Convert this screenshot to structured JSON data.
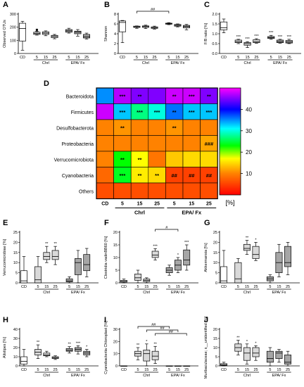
{
  "chart_data": [
    {
      "panel": "A",
      "type": "box",
      "ylabel": "Observed OTUs",
      "ylim": [
        0,
        300
      ],
      "yticks": [
        0,
        100,
        200,
        300
      ],
      "categories": [
        "CD",
        "5",
        "15",
        "25",
        "5",
        "15",
        "25"
      ],
      "groups": [
        {
          "label": "Chrl",
          "start": 1,
          "end": 3
        },
        {
          "label": "EPA/ Fx",
          "start": 4,
          "end": 6
        }
      ],
      "boxes": [
        {
          "min": 25,
          "q1": 95,
          "med": 190,
          "q3": 230,
          "max": 245,
          "color": "#ffffff"
        },
        {
          "min": 140,
          "q1": 145,
          "med": 152,
          "q3": 162,
          "max": 168,
          "color": "#d9d9d9",
          "outliers": [
            180
          ]
        },
        {
          "min": 135,
          "q1": 145,
          "med": 155,
          "q3": 165,
          "max": 172,
          "color": "#d9d9d9"
        },
        {
          "min": 112,
          "q1": 120,
          "med": 130,
          "q3": 138,
          "max": 145,
          "color": "#d9d9d9"
        },
        {
          "min": 155,
          "q1": 162,
          "med": 172,
          "q3": 182,
          "max": 192,
          "color": "#a6a6a6"
        },
        {
          "min": 132,
          "q1": 150,
          "med": 162,
          "q3": 170,
          "max": 182,
          "color": "#a6a6a6"
        },
        {
          "min": 110,
          "q1": 118,
          "med": 128,
          "q3": 145,
          "max": 155,
          "color": "#a6a6a6"
        }
      ]
    },
    {
      "panel": "B",
      "type": "box",
      "ylabel": "Shannon",
      "ylim": [
        0,
        8
      ],
      "yticks": [
        0,
        2,
        4,
        6,
        8
      ],
      "categories": [
        "CD",
        "5",
        "15",
        "25",
        "5",
        "15",
        "25"
      ],
      "groups": [
        {
          "label": "Chrl",
          "start": 1,
          "end": 3
        },
        {
          "label": "EPA/ Fx",
          "start": 4,
          "end": 6
        }
      ],
      "brackets": [
        {
          "from": 1,
          "to": 4,
          "label": "##"
        }
      ],
      "boxes": [
        {
          "min": 2.2,
          "q1": 4.4,
          "med": 6.3,
          "q3": 6.6,
          "max": 6.7,
          "color": "#ffffff"
        },
        {
          "min": 5.1,
          "q1": 5.3,
          "med": 5.4,
          "q3": 5.55,
          "max": 5.6,
          "color": "#d9d9d9"
        },
        {
          "min": 5.05,
          "q1": 5.3,
          "med": 5.45,
          "q3": 5.6,
          "max": 5.75,
          "color": "#d9d9d9"
        },
        {
          "min": 4.95,
          "q1": 5.1,
          "med": 5.25,
          "q3": 5.4,
          "max": 5.55,
          "color": "#d9d9d9"
        },
        {
          "min": 5.85,
          "q1": 5.95,
          "med": 6.05,
          "q3": 6.15,
          "max": 6.25,
          "color": "#a6a6a6"
        },
        {
          "min": 5.4,
          "q1": 5.55,
          "med": 5.7,
          "q3": 5.9,
          "max": 6.0,
          "color": "#a6a6a6"
        },
        {
          "min": 4.8,
          "q1": 5.2,
          "med": 5.5,
          "q3": 5.7,
          "max": 5.9,
          "color": "#a6a6a6"
        }
      ]
    },
    {
      "panel": "C",
      "type": "box",
      "ylabel": "F/B ratio [%]",
      "ylim": [
        0.0,
        2.0
      ],
      "yticks": [
        0.0,
        0.5,
        1.0,
        1.5,
        2.0
      ],
      "ytick_decimals": 1,
      "categories": [
        "CD",
        "5",
        "15",
        "25",
        "5",
        "15",
        "25"
      ],
      "groups": [
        {
          "label": "Chrl",
          "start": 1,
          "end": 3
        },
        {
          "label": "EPA/ Fx",
          "start": 4,
          "end": 6
        }
      ],
      "boxes": [
        {
          "min": 1.05,
          "q1": 1.2,
          "med": 1.3,
          "q3": 1.6,
          "max": 1.75,
          "color": "#ffffff",
          "sig": ""
        },
        {
          "min": 0.5,
          "q1": 0.55,
          "med": 0.6,
          "q3": 0.68,
          "max": 0.72,
          "color": "#d9d9d9",
          "sig": "***"
        },
        {
          "min": 0.3,
          "q1": 0.42,
          "med": 0.5,
          "q3": 0.56,
          "max": 0.6,
          "color": "#d9d9d9",
          "sig": "***"
        },
        {
          "min": 0.52,
          "q1": 0.55,
          "med": 0.6,
          "q3": 0.7,
          "max": 0.75,
          "color": "#d9d9d9",
          "sig": "***"
        },
        {
          "min": 0.72,
          "q1": 0.76,
          "med": 0.8,
          "q3": 0.86,
          "max": 0.92,
          "color": "#a6a6a6",
          "sig": "***"
        },
        {
          "min": 0.52,
          "q1": 0.55,
          "med": 0.6,
          "q3": 0.68,
          "max": 0.72,
          "color": "#a6a6a6",
          "sig": "***"
        },
        {
          "min": 0.5,
          "q1": 0.53,
          "med": 0.58,
          "q3": 0.66,
          "max": 0.72,
          "color": "#a6a6a6",
          "sig": "***"
        }
      ]
    },
    {
      "panel": "D",
      "type": "heatmap",
      "rows": [
        "Bacteroidota",
        "Firmicutes",
        "Desulfobacterota",
        "Proteobacteria",
        "Verrucomicrobiota",
        "Cyanobacteria",
        "Others"
      ],
      "columns": [
        "CD",
        "5",
        "15",
        "25",
        "5",
        "15",
        "25"
      ],
      "groups": [
        {
          "label": "Chrl",
          "start": 1,
          "end": 3
        },
        {
          "label": "EPA/ Fx",
          "start": 4,
          "end": 6
        }
      ],
      "values": [
        [
          35,
          47,
          45,
          45,
          48,
          48,
          45
        ],
        [
          48,
          33,
          27,
          30,
          36,
          33,
          33
        ],
        [
          10,
          11,
          10,
          10,
          11,
          10,
          10
        ],
        [
          10,
          10,
          10,
          10,
          10,
          10,
          12
        ],
        [
          10,
          23,
          17,
          9,
          14,
          15,
          15
        ],
        [
          8,
          24,
          16,
          15,
          5,
          5,
          5
        ],
        [
          6,
          6,
          6,
          6,
          6,
          6,
          6
        ]
      ],
      "annotations": [
        [
          "",
          "***",
          "**",
          "",
          "**",
          "***",
          "**"
        ],
        [
          "",
          "***",
          "***",
          "***",
          "**",
          "***",
          "***"
        ],
        [
          "",
          "**",
          "",
          "",
          "**",
          "",
          ""
        ],
        [
          "",
          "",
          "",
          "",
          "",
          "",
          "###"
        ],
        [
          "",
          "**",
          "**",
          "",
          "",
          "",
          ""
        ],
        [
          "",
          "***",
          "**",
          "**",
          "##",
          "##",
          "##"
        ],
        [
          "",
          "",
          "",
          "",
          "",
          "",
          ""
        ]
      ],
      "colorbar": {
        "label": "[%]",
        "ticks": [
          10,
          20,
          30,
          40
        ],
        "range": [
          0,
          50
        ]
      }
    },
    {
      "panel": "E",
      "type": "box",
      "ylabel": "Verrucomicrobiae [%]",
      "ylim": [
        0,
        25
      ],
      "yticks": [
        0,
        5,
        10,
        15,
        20,
        25
      ],
      "categories": [
        "CD",
        "5",
        "15",
        "25",
        "5",
        "15",
        "25"
      ],
      "groups": [
        {
          "label": "Chrl",
          "start": 1,
          "end": 3
        },
        {
          "label": "EPA/ Fx",
          "start": 4,
          "end": 6
        }
      ],
      "boxes": [
        {
          "min": 0,
          "q1": 0,
          "med": 1,
          "q3": 6,
          "max": 13,
          "color": "#ffffff",
          "sig": ""
        },
        {
          "min": 0,
          "q1": 0,
          "med": 1.5,
          "q3": 8,
          "max": 13,
          "color": "#d9d9d9",
          "sig": ""
        },
        {
          "min": 10,
          "q1": 11.5,
          "med": 13,
          "q3": 15,
          "max": 18,
          "color": "#d9d9d9",
          "sig": "**"
        },
        {
          "min": 9,
          "q1": 11.5,
          "med": 13,
          "q3": 16,
          "max": 18,
          "color": "#d9d9d9",
          "sig": "**"
        },
        {
          "min": 0,
          "q1": 0.5,
          "med": 1,
          "q3": 2,
          "max": 3,
          "color": "#a6a6a6",
          "sig": ""
        },
        {
          "min": 0,
          "q1": 4,
          "med": 10,
          "q3": 12,
          "max": 16,
          "color": "#a6a6a6",
          "sig": ""
        },
        {
          "min": 3,
          "q1": 6,
          "med": 9,
          "q3": 14,
          "max": 17,
          "color": "#a6a6a6",
          "sig": ""
        }
      ]
    },
    {
      "panel": "F",
      "type": "box",
      "ylabel": "Clostridia vadinBB60 [%]",
      "ylim": [
        0,
        20
      ],
      "yticks": [
        0,
        5,
        10,
        15,
        20
      ],
      "categories": [
        "CD",
        "5",
        "15",
        "25",
        "5",
        "15",
        "25"
      ],
      "groups": [
        {
          "label": "Chrl",
          "start": 1,
          "end": 3
        },
        {
          "label": "EPA/ Fx",
          "start": 4,
          "end": 6
        }
      ],
      "brackets": [
        {
          "from": 3,
          "to": 5,
          "label": "#"
        }
      ],
      "boxes": [
        {
          "min": 0,
          "q1": 0.3,
          "med": 0.6,
          "q3": 1,
          "max": 1.5,
          "color": "#ffffff",
          "sig": ""
        },
        {
          "min": 0,
          "q1": 1,
          "med": 2,
          "q3": 3.5,
          "max": 5,
          "color": "#d9d9d9",
          "sig": ""
        },
        {
          "min": 0,
          "q1": 0.5,
          "med": 1,
          "q3": 1.5,
          "max": 2,
          "color": "#d9d9d9",
          "sig": ""
        },
        {
          "min": 9,
          "q1": 10,
          "med": 11,
          "q3": 12.5,
          "max": 13.5,
          "color": "#d9d9d9",
          "sig": "***"
        },
        {
          "min": 3,
          "q1": 4,
          "med": 5,
          "q3": 6,
          "max": 7,
          "color": "#a6a6a6",
          "sig": ""
        },
        {
          "min": 4,
          "q1": 5,
          "med": 7,
          "q3": 9,
          "max": 10,
          "color": "#a6a6a6",
          "sig": "*"
        },
        {
          "min": 5,
          "q1": 7,
          "med": 9,
          "q3": 13,
          "max": 15,
          "color": "#a6a6a6",
          "sig": "***"
        }
      ]
    },
    {
      "panel": "G",
      "type": "box",
      "ylabel": "Akkermansia [%]",
      "ylim": [
        0,
        25
      ],
      "yticks": [
        0,
        5,
        10,
        15,
        20,
        25
      ],
      "categories": [
        "CD",
        "5",
        "15",
        "25",
        "5",
        "15",
        "25"
      ],
      "groups": [
        {
          "label": "Chrl",
          "start": 1,
          "end": 3
        },
        {
          "label": "EPA/ Fx",
          "start": 4,
          "end": 6
        }
      ],
      "boxes": [
        {
          "min": 0,
          "q1": 0,
          "med": 1,
          "q3": 8,
          "max": 16,
          "color": "#ffffff",
          "sig": ""
        },
        {
          "min": 0,
          "q1": 0,
          "med": 2,
          "q3": 10,
          "max": 12,
          "color": "#d9d9d9",
          "sig": ""
        },
        {
          "min": 14,
          "q1": 16,
          "med": 17,
          "q3": 19,
          "max": 21,
          "color": "#d9d9d9",
          "sig": "**"
        },
        {
          "min": 11,
          "q1": 12,
          "med": 14,
          "q3": 18,
          "max": 20,
          "color": "#d9d9d9",
          "sig": "*"
        },
        {
          "min": 0,
          "q1": 1,
          "med": 2,
          "q3": 3,
          "max": 4,
          "color": "#a6a6a6",
          "sig": ""
        },
        {
          "min": 3,
          "q1": 5,
          "med": 10,
          "q3": 15,
          "max": 19,
          "color": "#a6a6a6",
          "sig": ""
        },
        {
          "min": 4,
          "q1": 8,
          "med": 10,
          "q3": 18,
          "max": 20,
          "color": "#a6a6a6",
          "sig": ""
        }
      ]
    },
    {
      "panel": "H",
      "type": "box",
      "ylabel": "Alistipes [%]",
      "ylim": [
        0,
        40
      ],
      "yticks": [
        0,
        10,
        20,
        30,
        40
      ],
      "categories": [
        "CD",
        "5",
        "15",
        "25",
        "5",
        "15",
        "25"
      ],
      "groups": [
        {
          "label": "Chrl",
          "start": 1,
          "end": 3
        },
        {
          "label": "EPA/ Fx",
          "start": 4,
          "end": 6
        }
      ],
      "boxes": [
        {
          "min": 0,
          "q1": 2,
          "med": 5,
          "q3": 10,
          "max": 18,
          "color": "#ffffff",
          "sig": ""
        },
        {
          "min": 8,
          "q1": 12,
          "med": 15,
          "q3": 18,
          "max": 23,
          "color": "#d9d9d9",
          "sig": "**"
        },
        {
          "min": 10,
          "q1": 11,
          "med": 12,
          "q3": 14,
          "max": 16,
          "color": "#d9d9d9",
          "sig": ""
        },
        {
          "min": 7,
          "q1": 8,
          "med": 9,
          "q3": 10,
          "max": 11,
          "color": "#d9d9d9",
          "sig": ""
        },
        {
          "min": 14,
          "q1": 16,
          "med": 17,
          "q3": 19,
          "max": 21,
          "color": "#a6a6a6",
          "sig": "**"
        },
        {
          "min": 13,
          "q1": 16,
          "med": 18,
          "q3": 20,
          "max": 22,
          "color": "#a6a6a6",
          "sig": "***"
        },
        {
          "min": 10,
          "q1": 12,
          "med": 14,
          "q3": 16,
          "max": 18,
          "color": "#a6a6a6",
          "sig": "*"
        }
      ]
    },
    {
      "panel": "I",
      "type": "box",
      "ylabel": "Cyanobacteriia Chloroplast [%]",
      "ylim": [
        0,
        30
      ],
      "yticks": [
        0,
        10,
        20,
        30
      ],
      "categories": [
        "CD",
        "5",
        "15",
        "25",
        "5",
        "15",
        "25"
      ],
      "groups": [
        {
          "label": "Chrl",
          "start": 1,
          "end": 3
        },
        {
          "label": "EPA/ Fx",
          "start": 4,
          "end": 6
        }
      ],
      "brackets": [
        {
          "from": 1,
          "to": 4,
          "label": "##"
        },
        {
          "from": 2,
          "to": 5,
          "label": "##"
        },
        {
          "from": 3,
          "to": 6,
          "label": "##"
        }
      ],
      "boxes": [
        {
          "min": 0,
          "q1": 0,
          "med": 0,
          "q3": 0,
          "max": 0,
          "color": "#ffffff",
          "sig": ""
        },
        {
          "min": 5,
          "q1": 8,
          "med": 10,
          "q3": 12,
          "max": 15,
          "color": "#d9d9d9",
          "sig": "**"
        },
        {
          "min": 0,
          "q1": 4,
          "med": 10,
          "q3": 13,
          "max": 18,
          "color": "#d9d9d9",
          "sig": "*"
        },
        {
          "min": 2,
          "q1": 5,
          "med": 8,
          "q3": 12,
          "max": 16,
          "color": "#d9d9d9",
          "sig": "**"
        },
        {
          "min": 0,
          "q1": 0,
          "med": 0,
          "q3": 0,
          "max": 0,
          "color": "#a6a6a6",
          "sig": ""
        },
        {
          "min": 0,
          "q1": 0,
          "med": 0,
          "q3": 0,
          "max": 0,
          "color": "#a6a6a6",
          "sig": ""
        },
        {
          "min": 0,
          "q1": 0,
          "med": 0,
          "q3": 0,
          "max": 0,
          "color": "#a6a6a6",
          "sig": ""
        }
      ]
    },
    {
      "panel": "J",
      "type": "box",
      "ylabel": "Muribaculaceae; s__unidentified [%]",
      "ylim": [
        0,
        20
      ],
      "yticks": [
        0,
        5,
        10,
        15,
        20
      ],
      "categories": [
        "CD",
        "5",
        "15",
        "25",
        "5",
        "15",
        "25"
      ],
      "groups": [
        {
          "label": "Chrl",
          "start": 1,
          "end": 3
        },
        {
          "label": "EPA/ Fx",
          "start": 4,
          "end": 6
        }
      ],
      "boxes": [
        {
          "min": 0,
          "q1": 0.3,
          "med": 0.7,
          "q3": 1.2,
          "max": 2,
          "color": "#ffffff",
          "sig": ""
        },
        {
          "min": 6,
          "q1": 8,
          "med": 10,
          "q3": 12,
          "max": 14,
          "color": "#d9d9d9",
          "sig": "**"
        },
        {
          "min": 1,
          "q1": 3,
          "med": 7,
          "q3": 10,
          "max": 12,
          "color": "#d9d9d9",
          "sig": "*"
        },
        {
          "min": 3,
          "q1": 5,
          "med": 7,
          "q3": 10,
          "max": 11,
          "color": "#d9d9d9",
          "sig": "*"
        },
        {
          "min": 0,
          "q1": 2,
          "med": 4,
          "q3": 8,
          "max": 10,
          "color": "#a6a6a6",
          "sig": ""
        },
        {
          "min": 2,
          "q1": 4,
          "med": 7,
          "q3": 8,
          "max": 9,
          "color": "#a6a6a6",
          "sig": ""
        },
        {
          "min": 0,
          "q1": 1,
          "med": 2,
          "q3": 6,
          "max": 8,
          "color": "#a6a6a6",
          "sig": ""
        }
      ]
    }
  ]
}
